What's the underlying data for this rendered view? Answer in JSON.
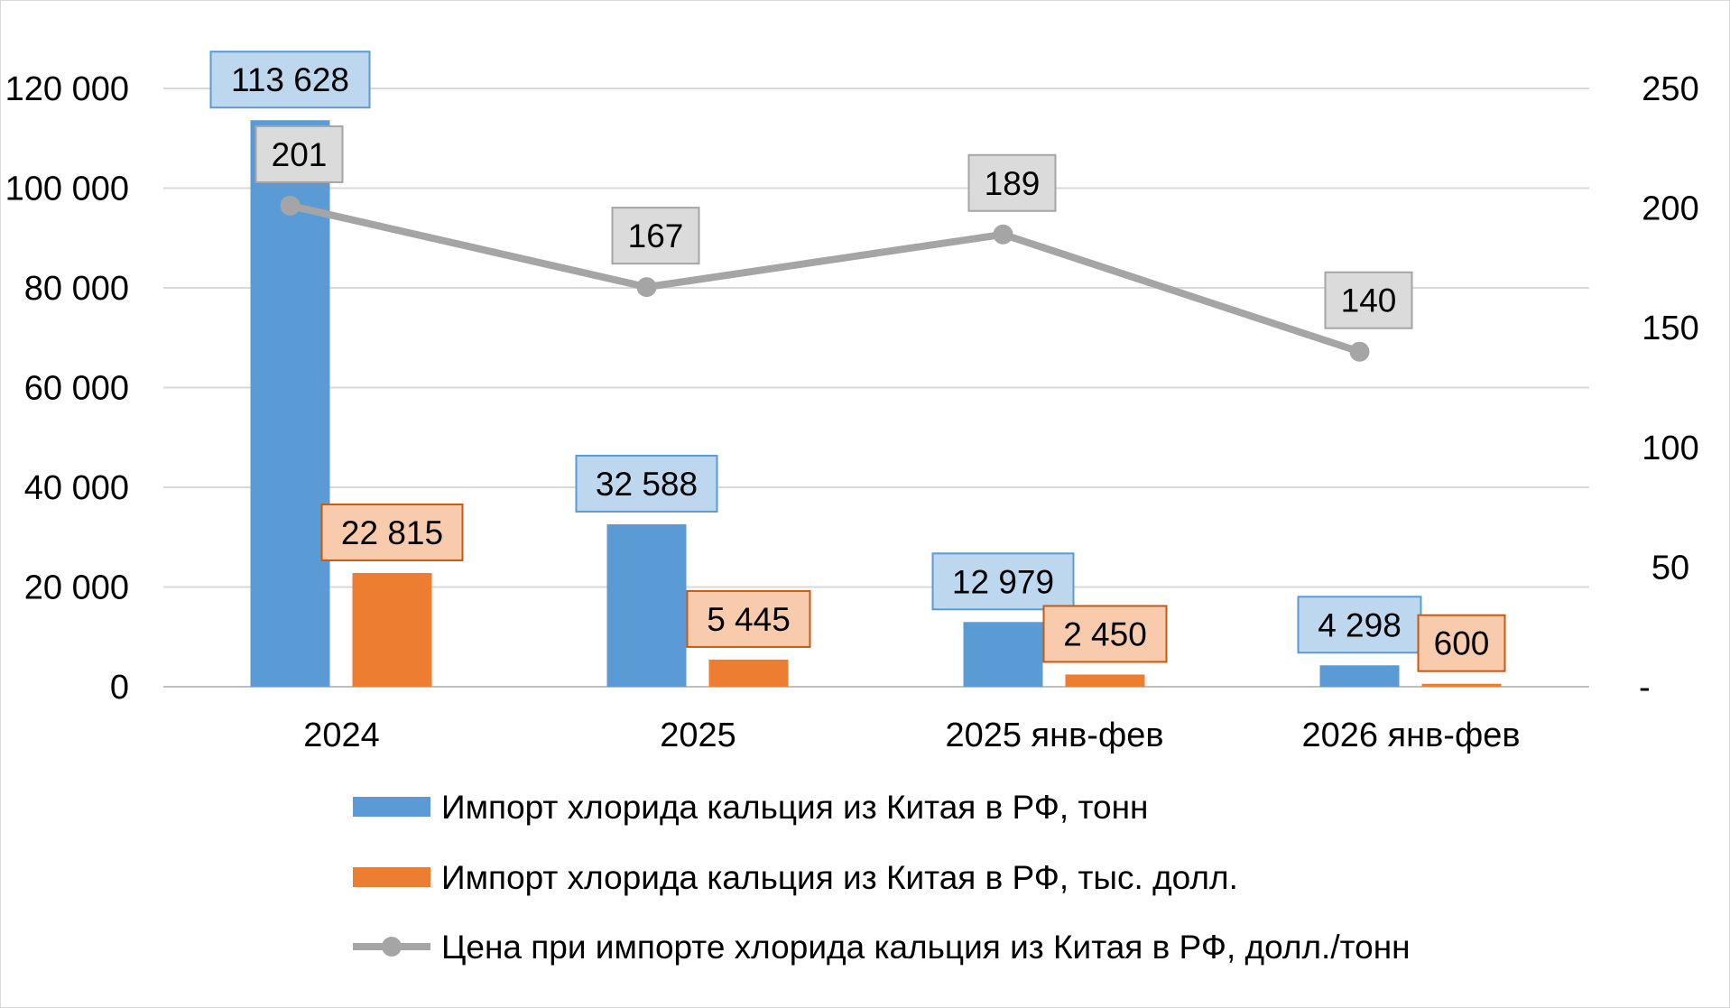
{
  "chart_data": {
    "type": "bar",
    "categories": [
      "2024",
      "2025",
      "2025 янв-фев",
      "2026 янв-фев"
    ],
    "series": [
      {
        "name": "Импорт хлорида кальция из Китая в РФ, тонн",
        "type": "bar",
        "axis": "left",
        "color": "#5b9bd5",
        "values": [
          113628,
          32588,
          12979,
          4298
        ],
        "labels": [
          "113 628",
          "32 588",
          "12 979",
          "4 298"
        ],
        "label_fill": "#bdd7ee",
        "label_border": "#5b9bd5"
      },
      {
        "name": "Импорт хлорида кальция из Китая в РФ, тыс. долл.",
        "type": "bar",
        "axis": "left",
        "color": "#ed7d31",
        "values": [
          22815,
          5445,
          2450,
          600
        ],
        "labels": [
          "22 815",
          "5 445",
          "2 450",
          "600"
        ],
        "label_fill": "#f8cbad",
        "label_border": "#c55a11"
      },
      {
        "name": "Цена при импорте хлорида кальция из Китая в РФ, долл./тонн",
        "type": "line",
        "axis": "right",
        "color": "#a5a5a5",
        "values": [
          201,
          167,
          189,
          140
        ],
        "labels": [
          "201",
          "167",
          "189",
          "140"
        ],
        "label_fill": "#dbdbdb",
        "label_border": "#a5a5a5"
      }
    ],
    "y_left": {
      "ylim": [
        0,
        120000
      ],
      "ticks": [
        0,
        20000,
        40000,
        60000,
        80000,
        100000,
        120000
      ],
      "tick_labels": [
        "0",
        "20 000",
        "40 000",
        "60 000",
        "80 000",
        "100 000",
        "120 000"
      ]
    },
    "y_right": {
      "ylim": [
        0,
        250
      ],
      "ticks": [
        0,
        50,
        100,
        150,
        200,
        250
      ],
      "tick_labels": [
        "-",
        "50",
        "100",
        "150",
        "200",
        "250"
      ]
    },
    "grid": true,
    "legend_position": "bottom",
    "title": "",
    "xlabel": "",
    "ylabel": ""
  }
}
